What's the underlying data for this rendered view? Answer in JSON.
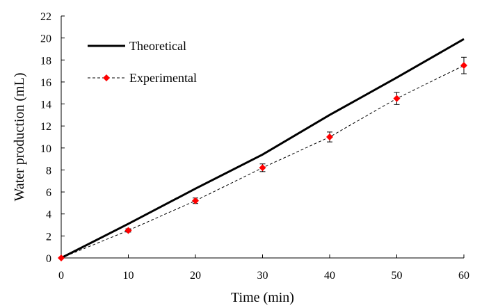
{
  "chart_data": {
    "type": "line",
    "xlabel": "Time (min)",
    "ylabel": "Water production (mL)",
    "xlim": [
      0,
      60
    ],
    "ylim": [
      0,
      22
    ],
    "x_ticks": [
      0,
      10,
      20,
      30,
      40,
      50,
      60
    ],
    "y_ticks": [
      0,
      2,
      4,
      6,
      8,
      10,
      12,
      14,
      16,
      18,
      20,
      22
    ],
    "grid": false,
    "legend_position": "top-left",
    "series": [
      {
        "name": "Theoretical",
        "style": "solid",
        "color": "#000000",
        "x": [
          0,
          10,
          20,
          30,
          40,
          50,
          60
        ],
        "y": [
          0,
          3.1,
          6.3,
          9.4,
          13.0,
          16.4,
          19.9
        ]
      },
      {
        "name": "Experimental",
        "style": "dashed",
        "color": "#000000",
        "marker": "diamond",
        "marker_color": "#ff0000",
        "x": [
          0,
          10,
          20,
          30,
          40,
          50,
          60
        ],
        "y": [
          0,
          2.5,
          5.2,
          8.2,
          11.0,
          14.5,
          17.5
        ],
        "error": [
          0,
          0.15,
          0.25,
          0.35,
          0.45,
          0.55,
          0.75
        ]
      }
    ]
  }
}
